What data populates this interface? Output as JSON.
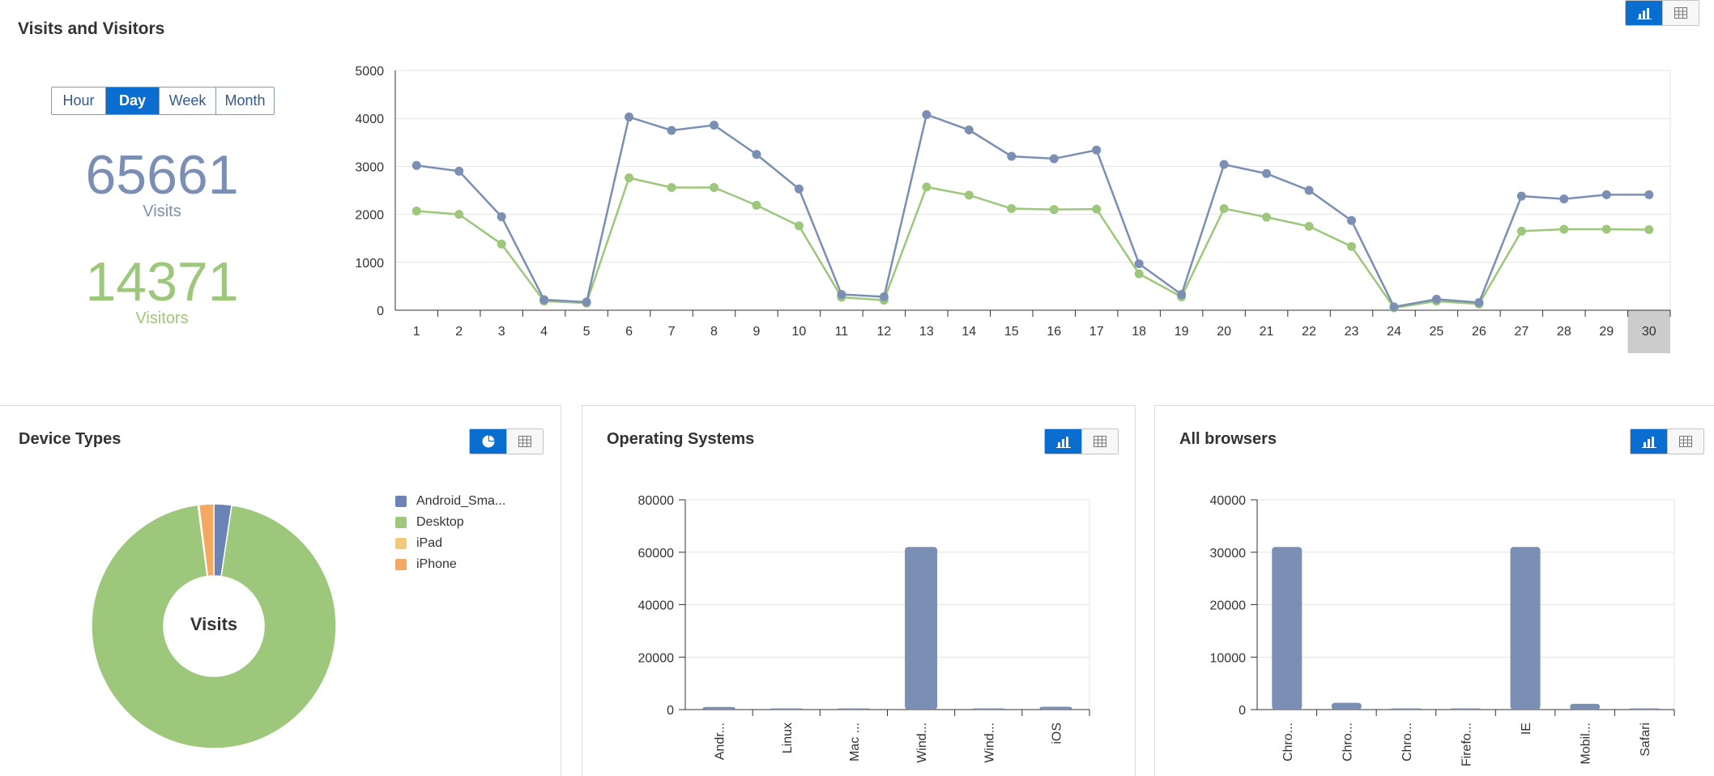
{
  "main": {
    "title": "Visits and Visitors",
    "periods": [
      {
        "label": "Hour",
        "selected": false
      },
      {
        "label": "Day",
        "selected": true
      },
      {
        "label": "Week",
        "selected": false
      },
      {
        "label": "Month",
        "selected": false
      }
    ],
    "visits_value": "65661",
    "visits_label": "Visits",
    "visitors_value": "14371",
    "visitors_label": "Visitors"
  },
  "device_panel": {
    "title": "Device Types",
    "center_label": "Visits"
  },
  "os_panel": {
    "title": "Operating Systems"
  },
  "browser_panel": {
    "title": "All browsers"
  },
  "colors": {
    "accent": "#0a6ed1",
    "visits": "#7a8fb3",
    "visitors": "#9dc77a",
    "bar": "#7a8fb3",
    "android": "#6b84b5",
    "desktop": "#9dc77a",
    "ipad": "#f0c97a",
    "iphone": "#f5a85f"
  },
  "chart_data": [
    {
      "type": "line",
      "title": "Visits and Visitors",
      "x": [
        1,
        2,
        3,
        4,
        5,
        6,
        7,
        8,
        9,
        10,
        11,
        12,
        13,
        14,
        15,
        16,
        17,
        18,
        19,
        20,
        21,
        22,
        23,
        24,
        25,
        26,
        27,
        28,
        29,
        30
      ],
      "ylim": [
        0,
        5000
      ],
      "yticks": [
        0,
        1000,
        2000,
        3000,
        4000,
        5000
      ],
      "selected_x": 30,
      "series": [
        {
          "name": "Visits",
          "color": "#7a8fb3",
          "values": [
            3020,
            2900,
            1950,
            220,
            170,
            4030,
            3750,
            3860,
            3250,
            2530,
            330,
            280,
            4080,
            3760,
            3210,
            3160,
            3340,
            970,
            330,
            3040,
            2850,
            2500,
            1870,
            70,
            230,
            160,
            2380,
            2320,
            2410,
            2410
          ]
        },
        {
          "name": "Visitors",
          "color": "#9dc77a",
          "values": [
            2070,
            2000,
            1380,
            190,
            150,
            2760,
            2560,
            2560,
            2190,
            1760,
            270,
            210,
            2570,
            2400,
            2120,
            2100,
            2110,
            760,
            280,
            2120,
            1940,
            1750,
            1330,
            50,
            190,
            130,
            1650,
            1690,
            1690,
            1680
          ]
        }
      ]
    },
    {
      "type": "pie",
      "title": "Device Types",
      "categories": [
        "Android_Sma...",
        "Desktop",
        "iPad",
        "iPhone"
      ],
      "values": [
        1500,
        61200,
        80,
        1250
      ]
    },
    {
      "type": "bar",
      "title": "Operating Systems",
      "categories": [
        "Andr...",
        "Linux",
        "Mac ...",
        "Wind...",
        "Wind...",
        "iOS"
      ],
      "values": [
        1000,
        100,
        150,
        62000,
        200,
        1100
      ],
      "ylim": [
        0,
        80000
      ],
      "yticks": [
        0,
        20000,
        40000,
        60000,
        80000
      ]
    },
    {
      "type": "bar",
      "title": "All browsers",
      "categories": [
        "Chro...",
        "Chro...",
        "Chro...",
        "Firefo...",
        "IE",
        "Mobil...",
        "Safari"
      ],
      "values": [
        31000,
        1300,
        100,
        100,
        31000,
        1100,
        100
      ],
      "ylim": [
        0,
        40000
      ],
      "yticks": [
        0,
        10000,
        20000,
        30000,
        40000
      ]
    }
  ]
}
